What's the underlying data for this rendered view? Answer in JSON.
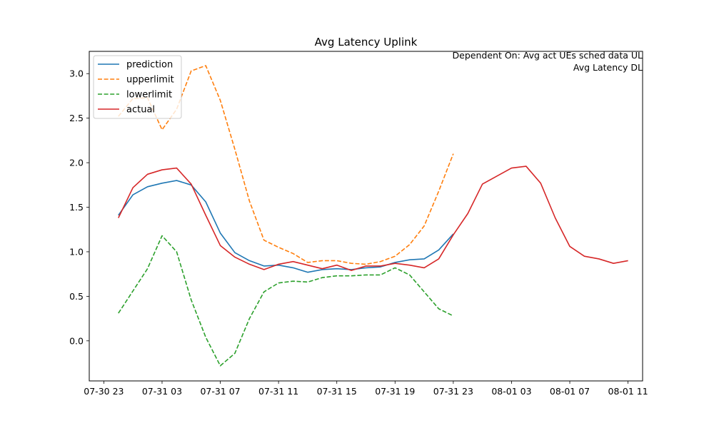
{
  "chart_data": {
    "type": "line",
    "title": "Avg Latency Uplink",
    "annotations": [
      "Dependent On: Avg act UEs sched data UL",
      "Avg Latency DL"
    ],
    "xlabel": "",
    "ylabel": "",
    "x_ticks": [
      "07-30 23",
      "07-31 03",
      "07-31 07",
      "07-31 11",
      "07-31 15",
      "07-31 19",
      "07-31 23",
      "08-01 03",
      "08-01 07",
      "08-01 11"
    ],
    "y_ticks": [
      "0.0",
      "0.5",
      "1.0",
      "1.5",
      "2.0",
      "2.5",
      "3.0"
    ],
    "xlim": [
      "2023-07-30 22:00",
      "2023-08-01 12:00"
    ],
    "ylim": [
      -0.45,
      3.25
    ],
    "grid": false,
    "legend_position": "upper-left",
    "series": [
      {
        "name": "prediction",
        "color": "#1f77b4",
        "dash": "solid",
        "x": [
          "2023-07-31 00:00",
          "2023-07-31 01:00",
          "2023-07-31 02:00",
          "2023-07-31 03:00",
          "2023-07-31 04:00",
          "2023-07-31 05:00",
          "2023-07-31 06:00",
          "2023-07-31 07:00",
          "2023-07-31 08:00",
          "2023-07-31 09:00",
          "2023-07-31 10:00",
          "2023-07-31 11:00",
          "2023-07-31 12:00",
          "2023-07-31 13:00",
          "2023-07-31 14:00",
          "2023-07-31 15:00",
          "2023-07-31 16:00",
          "2023-07-31 17:00",
          "2023-07-31 18:00",
          "2023-07-31 19:00",
          "2023-07-31 20:00",
          "2023-07-31 21:00",
          "2023-07-31 22:00",
          "2023-07-31 23:00"
        ],
        "values": [
          1.41,
          1.64,
          1.73,
          1.77,
          1.8,
          1.75,
          1.56,
          1.21,
          0.99,
          0.9,
          0.84,
          0.85,
          0.82,
          0.77,
          0.8,
          0.81,
          0.8,
          0.82,
          0.83,
          0.88,
          0.91,
          0.92,
          1.02,
          1.2
        ]
      },
      {
        "name": "upperlimit",
        "color": "#ff7f0e",
        "dash": "dashed",
        "x": [
          "2023-07-31 00:00",
          "2023-07-31 01:00",
          "2023-07-31 02:00",
          "2023-07-31 03:00",
          "2023-07-31 04:00",
          "2023-07-31 05:00",
          "2023-07-31 06:00",
          "2023-07-31 07:00",
          "2023-07-31 08:00",
          "2023-07-31 09:00",
          "2023-07-31 10:00",
          "2023-07-31 11:00",
          "2023-07-31 12:00",
          "2023-07-31 13:00",
          "2023-07-31 14:00",
          "2023-07-31 15:00",
          "2023-07-31 16:00",
          "2023-07-31 17:00",
          "2023-07-31 18:00",
          "2023-07-31 19:00",
          "2023-07-31 20:00",
          "2023-07-31 21:00",
          "2023-07-31 22:00",
          "2023-07-31 23:00"
        ],
        "values": [
          2.52,
          2.72,
          2.73,
          2.37,
          2.6,
          3.03,
          3.09,
          2.7,
          2.15,
          1.57,
          1.13,
          1.05,
          0.98,
          0.88,
          0.9,
          0.9,
          0.87,
          0.86,
          0.89,
          0.95,
          1.08,
          1.29,
          1.68,
          2.1
        ]
      },
      {
        "name": "lowerlimit",
        "color": "#2ca02c",
        "dash": "dashed",
        "x": [
          "2023-07-31 00:00",
          "2023-07-31 01:00",
          "2023-07-31 02:00",
          "2023-07-31 03:00",
          "2023-07-31 04:00",
          "2023-07-31 05:00",
          "2023-07-31 06:00",
          "2023-07-31 07:00",
          "2023-07-31 08:00",
          "2023-07-31 09:00",
          "2023-07-31 10:00",
          "2023-07-31 11:00",
          "2023-07-31 12:00",
          "2023-07-31 13:00",
          "2023-07-31 14:00",
          "2023-07-31 15:00",
          "2023-07-31 16:00",
          "2023-07-31 17:00",
          "2023-07-31 18:00",
          "2023-07-31 19:00",
          "2023-07-31 20:00",
          "2023-07-31 21:00",
          "2023-07-31 22:00",
          "2023-07-31 23:00"
        ],
        "values": [
          0.31,
          0.56,
          0.81,
          1.18,
          1.0,
          0.46,
          0.04,
          -0.28,
          -0.14,
          0.25,
          0.55,
          0.65,
          0.67,
          0.66,
          0.71,
          0.73,
          0.73,
          0.74,
          0.74,
          0.82,
          0.74,
          0.55,
          0.36,
          0.28
        ]
      },
      {
        "name": "actual",
        "color": "#d62728",
        "dash": "solid",
        "x": [
          "2023-07-31 00:00",
          "2023-07-31 01:00",
          "2023-07-31 02:00",
          "2023-07-31 03:00",
          "2023-07-31 04:00",
          "2023-07-31 05:00",
          "2023-07-31 06:00",
          "2023-07-31 07:00",
          "2023-07-31 08:00",
          "2023-07-31 09:00",
          "2023-07-31 10:00",
          "2023-07-31 11:00",
          "2023-07-31 12:00",
          "2023-07-31 13:00",
          "2023-07-31 14:00",
          "2023-07-31 15:00",
          "2023-07-31 16:00",
          "2023-07-31 17:00",
          "2023-07-31 18:00",
          "2023-07-31 19:00",
          "2023-07-31 20:00",
          "2023-07-31 21:00",
          "2023-07-31 22:00",
          "2023-07-31 23:00",
          "2023-08-01 00:00",
          "2023-08-01 01:00",
          "2023-08-01 02:00",
          "2023-08-01 03:00",
          "2023-08-01 04:00",
          "2023-08-01 05:00",
          "2023-08-01 06:00",
          "2023-08-01 07:00",
          "2023-08-01 08:00",
          "2023-08-01 09:00",
          "2023-08-01 10:00",
          "2023-08-01 11:00"
        ],
        "values": [
          1.38,
          1.72,
          1.87,
          1.92,
          1.94,
          1.76,
          1.41,
          1.07,
          0.94,
          0.86,
          0.8,
          0.86,
          0.89,
          0.85,
          0.81,
          0.85,
          0.79,
          0.84,
          0.84,
          0.87,
          0.85,
          0.82,
          0.92,
          1.19,
          1.43,
          1.76,
          1.85,
          1.94,
          1.96,
          1.77,
          1.38,
          1.06,
          0.95,
          0.92,
          0.87,
          0.9
        ]
      }
    ]
  }
}
